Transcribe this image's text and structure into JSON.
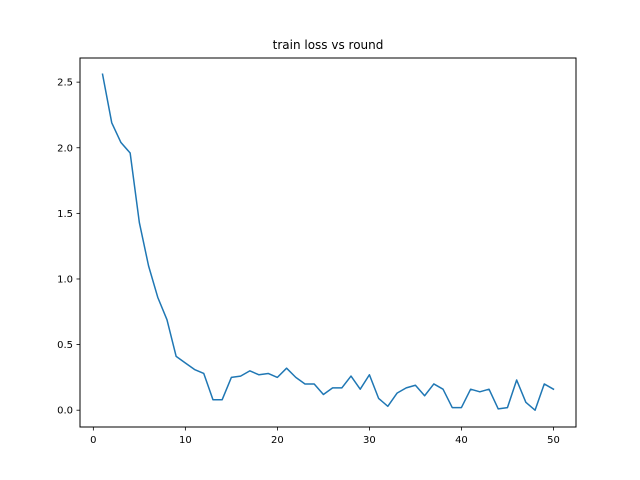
{
  "chart_data": {
    "type": "line",
    "title": "train loss vs round",
    "xlabel": "",
    "ylabel": "",
    "xlim": [
      -1.45,
      52.45
    ],
    "ylim": [
      -0.128,
      2.684
    ],
    "xticks": [
      0,
      10,
      20,
      30,
      40,
      50
    ],
    "yticks": [
      0.0,
      0.5,
      1.0,
      1.5,
      2.0,
      2.5
    ],
    "xtick_labels": [
      "0",
      "10",
      "20",
      "30",
      "40",
      "50"
    ],
    "ytick_labels": [
      "0.0",
      "0.5",
      "1.0",
      "1.5",
      "2.0",
      "2.5"
    ],
    "grid": false,
    "series": [
      {
        "color": "#1f77b4",
        "x": [
          1,
          2,
          3,
          4,
          5,
          6,
          7,
          8,
          9,
          10,
          11,
          12,
          13,
          14,
          15,
          16,
          17,
          18,
          19,
          20,
          21,
          22,
          23,
          24,
          25,
          26,
          27,
          28,
          29,
          30,
          31,
          32,
          33,
          34,
          35,
          36,
          37,
          38,
          39,
          40,
          41,
          42,
          43,
          44,
          45,
          46,
          47,
          48,
          49,
          50
        ],
        "y": [
          2.56,
          2.19,
          2.04,
          1.96,
          1.43,
          1.1,
          0.86,
          0.69,
          0.41,
          0.36,
          0.31,
          0.28,
          0.08,
          0.08,
          0.25,
          0.26,
          0.3,
          0.27,
          0.28,
          0.25,
          0.32,
          0.25,
          0.2,
          0.2,
          0.12,
          0.17,
          0.17,
          0.26,
          0.16,
          0.27,
          0.09,
          0.03,
          0.13,
          0.17,
          0.19,
          0.11,
          0.2,
          0.16,
          0.02,
          0.02,
          0.16,
          0.14,
          0.16,
          0.01,
          0.02,
          0.23,
          0.06,
          0.0,
          0.2,
          0.16
        ]
      }
    ]
  }
}
